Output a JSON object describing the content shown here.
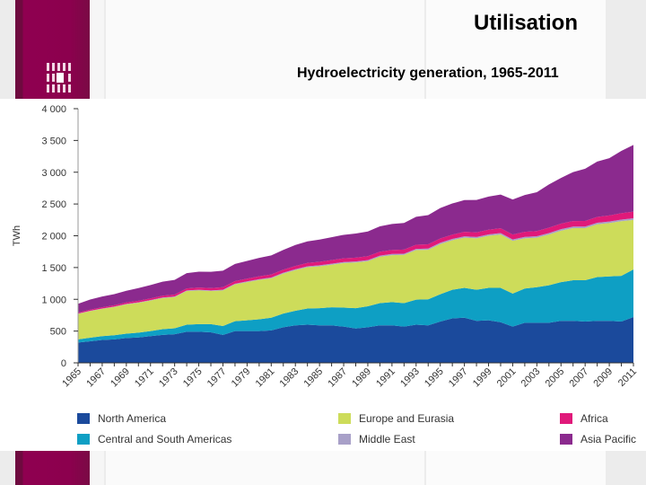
{
  "slide": {
    "title": "Utilisation",
    "subtitle": "Hydroelectricity generation, 1965-2011"
  },
  "chart_data": {
    "type": "area",
    "stacked": true,
    "title": "",
    "xlabel": "",
    "ylabel": "TWh",
    "ylim": [
      0,
      4000
    ],
    "xlim": [
      1965,
      2011
    ],
    "yticks": [
      "0",
      "500",
      "1 000",
      "1 500",
      "2 000",
      "2 500",
      "3 000",
      "3 500",
      "4 000"
    ],
    "ytick_values": [
      0,
      500,
      1000,
      1500,
      2000,
      2500,
      3000,
      3500,
      4000
    ],
    "xtick_labels": [
      "1965",
      "1967",
      "1969",
      "1971",
      "1973",
      "1975",
      "1977",
      "1979",
      "1981",
      "1983",
      "1985",
      "1987",
      "1989",
      "1991",
      "1993",
      "1995",
      "1997",
      "1999",
      "2001",
      "2003",
      "2005",
      "2007",
      "2009",
      "2011"
    ],
    "grid": false,
    "legend_position": "bottom",
    "x": [
      1965,
      1966,
      1967,
      1968,
      1969,
      1970,
      1971,
      1972,
      1973,
      1974,
      1975,
      1976,
      1977,
      1978,
      1979,
      1980,
      1981,
      1982,
      1983,
      1984,
      1985,
      1986,
      1987,
      1988,
      1989,
      1990,
      1991,
      1992,
      1993,
      1994,
      1995,
      1996,
      1997,
      1998,
      1999,
      2000,
      2001,
      2002,
      2003,
      2004,
      2005,
      2006,
      2007,
      2008,
      2009,
      2010,
      2011
    ],
    "series": [
      {
        "name": "North America",
        "color": "#1b4a9c",
        "values": [
          320,
          340,
          360,
          370,
          390,
          400,
          420,
          440,
          450,
          490,
          490,
          480,
          440,
          500,
          500,
          500,
          510,
          560,
          590,
          600,
          590,
          590,
          570,
          540,
          560,
          590,
          590,
          570,
          600,
          590,
          650,
          700,
          710,
          660,
          670,
          640,
          570,
          630,
          630,
          630,
          660,
          660,
          650,
          660,
          660,
          650,
          720
        ]
      },
      {
        "name": "Central and South Americas",
        "color": "#0e9fc4",
        "values": [
          50,
          55,
          60,
          65,
          70,
          75,
          80,
          90,
          95,
          110,
          120,
          130,
          140,
          155,
          170,
          185,
          200,
          215,
          230,
          255,
          270,
          285,
          300,
          320,
          330,
          350,
          365,
          370,
          395,
          410,
          430,
          450,
          470,
          490,
          510,
          540,
          520,
          540,
          560,
          590,
          610,
          640,
          650,
          690,
          700,
          720,
          750
        ]
      },
      {
        "name": "Europe and Eurasia",
        "color": "#cddc5a",
        "values": [
          400,
          420,
          430,
          445,
          460,
          470,
          480,
          490,
          490,
          530,
          530,
          520,
          560,
          580,
          600,
          620,
          620,
          630,
          640,
          650,
          660,
          670,
          700,
          720,
          710,
          730,
          740,
          760,
          780,
          780,
          790,
          780,
          790,
          810,
          820,
          840,
          830,
          790,
          780,
          800,
          810,
          820,
          820,
          830,
          840,
          860,
          780
        ]
      },
      {
        "name": "Middle East",
        "color": "#a8a0c8",
        "values": [
          5,
          5,
          6,
          6,
          7,
          7,
          8,
          8,
          9,
          9,
          10,
          10,
          11,
          11,
          12,
          12,
          13,
          13,
          14,
          14,
          15,
          15,
          16,
          16,
          17,
          17,
          18,
          18,
          19,
          19,
          20,
          20,
          21,
          21,
          22,
          22,
          22,
          22,
          23,
          23,
          24,
          24,
          24,
          25,
          25,
          25,
          25
        ]
      },
      {
        "name": "Africa",
        "color": "#e0197a",
        "values": [
          15,
          17,
          19,
          21,
          23,
          25,
          27,
          29,
          31,
          33,
          35,
          37,
          39,
          41,
          43,
          45,
          47,
          49,
          51,
          53,
          55,
          57,
          59,
          60,
          61,
          62,
          63,
          64,
          65,
          66,
          67,
          68,
          70,
          72,
          74,
          76,
          78,
          80,
          82,
          84,
          86,
          88,
          90,
          92,
          95,
          100,
          105
        ]
      },
      {
        "name": "Asia Pacific",
        "color": "#8b2a8e",
        "values": [
          140,
          160,
          170,
          175,
          185,
          200,
          210,
          220,
          230,
          240,
          250,
          255,
          260,
          270,
          280,
          290,
          300,
          310,
          330,
          340,
          350,
          360,
          370,
          380,
          390,
          400,
          410,
          420,
          440,
          460,
          480,
          490,
          500,
          510,
          520,
          530,
          550,
          580,
          610,
          680,
          720,
          770,
          820,
          870,
          900,
          980,
          1050
        ]
      }
    ]
  }
}
